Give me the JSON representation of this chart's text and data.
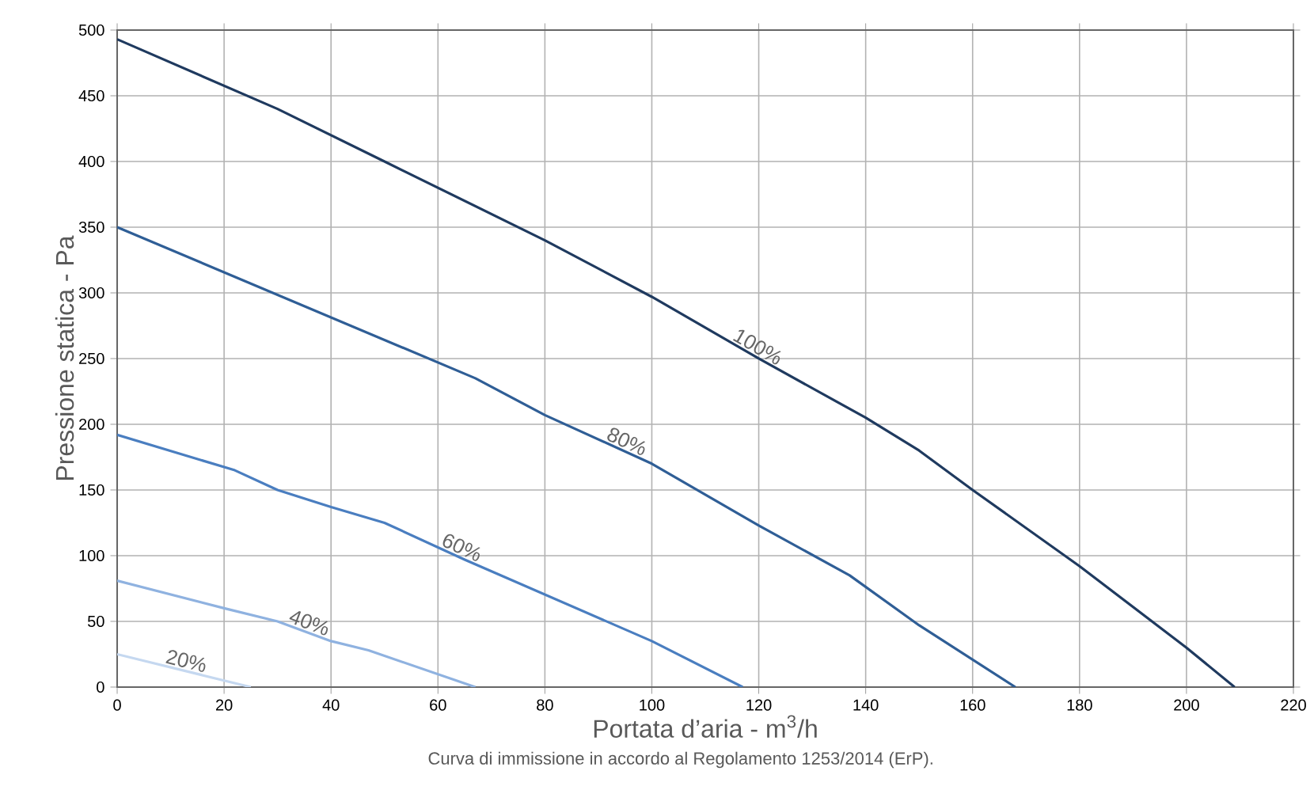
{
  "chart_data": {
    "type": "line",
    "xlabel": "Portata d’aria - m$^{3}$/h",
    "ylabel": "Pressione statica - Pa",
    "annotations": [
      "Curva di immissione in accordo al Regolamento 1253/2014 (ErP)."
    ],
    "xlim": [
      0,
      220
    ],
    "ylim": [
      0,
      500
    ],
    "xticks": [
      0,
      20,
      40,
      60,
      80,
      100,
      120,
      140,
      160,
      180,
      200,
      220
    ],
    "yticks": [
      0,
      50,
      100,
      150,
      200,
      250,
      300,
      350,
      400,
      450,
      500
    ],
    "grid": true,
    "legend": false,
    "marker": "none",
    "line_style": "solid",
    "series": [
      {
        "name": "100%",
        "color": "#1f3a5f",
        "x": [
          0,
          30,
          50,
          80,
          100,
          120,
          140,
          150,
          160,
          180,
          200,
          209
        ],
        "values": [
          493,
          440,
          400,
          340,
          297,
          250,
          205,
          180,
          150,
          92,
          30,
          0
        ]
      },
      {
        "name": "80%",
        "color": "#2f5e96",
        "x": [
          0,
          67,
          80,
          100,
          120,
          137,
          150,
          168
        ],
        "values": [
          350,
          235,
          207,
          170,
          123,
          85,
          47,
          0
        ]
      },
      {
        "name": "60%",
        "color": "#4a7ec0",
        "x": [
          0,
          22,
          30,
          40,
          50,
          65,
          100,
          117
        ],
        "values": [
          192,
          165,
          150,
          137,
          125,
          97,
          35,
          0
        ]
      },
      {
        "name": "40%",
        "color": "#8fb2e0",
        "x": [
          0,
          20,
          30,
          40,
          47,
          67
        ],
        "values": [
          81,
          60,
          50,
          35,
          28,
          0
        ]
      },
      {
        "name": "20%",
        "color": "#c5d8f0",
        "x": [
          0,
          25
        ],
        "values": [
          25,
          0
        ]
      }
    ]
  }
}
